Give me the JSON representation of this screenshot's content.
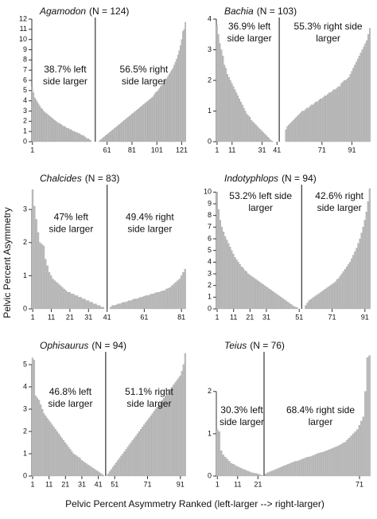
{
  "y_label": "Pelvic Percent Asymmetry",
  "x_label": "Pelvic Percent Asymmetry Ranked (left-larger --> right-larger)",
  "chart_data": [
    {
      "type": "bar",
      "genus": "Agamodon",
      "n_label": "(N = 124)",
      "color": "#bdbdbd",
      "annotations": [
        [
          "38.7% left",
          "side larger"
        ],
        [
          "56.5% right",
          "side larger"
        ]
      ],
      "xlim": [
        0.5,
        124.5
      ],
      "xticks": [
        1,
        61,
        81,
        101,
        121
      ],
      "ylim": [
        0,
        12
      ],
      "yticks": [
        0,
        1,
        2,
        3,
        4,
        5,
        6,
        7,
        8,
        9,
        10,
        11,
        12
      ],
      "values": [
        5.4,
        4.8,
        4.3,
        4.1,
        3.9,
        3.7,
        3.5,
        3.3,
        3.2,
        3.0,
        2.9,
        2.8,
        2.7,
        2.6,
        2.5,
        2.4,
        2.3,
        2.2,
        2.1,
        2.0,
        1.9,
        1.8,
        1.8,
        1.7,
        1.6,
        1.5,
        1.5,
        1.4,
        1.3,
        1.3,
        1.2,
        1.2,
        1.1,
        1.0,
        1.0,
        0.9,
        0.9,
        0.8,
        0.8,
        0.7,
        0.6,
        0.6,
        0.5,
        0.4,
        0.3,
        0.3,
        0.2,
        0.1,
        0,
        0,
        0,
        0,
        0,
        0,
        0.1,
        0.2,
        0.3,
        0.4,
        0.5,
        0.6,
        0.7,
        0.8,
        0.9,
        1.0,
        1.1,
        1.2,
        1.3,
        1.4,
        1.5,
        1.6,
        1.7,
        1.8,
        1.9,
        2.0,
        2.1,
        2.2,
        2.3,
        2.4,
        2.5,
        2.6,
        2.7,
        2.8,
        2.9,
        3.0,
        3.1,
        3.2,
        3.3,
        3.4,
        3.5,
        3.6,
        3.7,
        3.8,
        3.9,
        4.0,
        4.1,
        4.2,
        4.3,
        4.4,
        4.6,
        4.8,
        4.9,
        5.0,
        5.2,
        5.4,
        5.5,
        5.7,
        5.9,
        6.0,
        6.2,
        6.4,
        6.6,
        6.8,
        7.0,
        7.2,
        7.5,
        7.8,
        8.1,
        8.5,
        8.9,
        9.4,
        10.0,
        10.8,
        11.0,
        11.7
      ]
    },
    {
      "type": "bar",
      "genus": "Bachia",
      "n_label": "(N = 103)",
      "color": "#bdbdbd",
      "annotations": [
        [
          "36.9% left",
          "side larger"
        ],
        [
          "55.3% right side",
          "larger"
        ]
      ],
      "xlim": [
        0.5,
        103.5
      ],
      "xticks": [
        1,
        11,
        31,
        41,
        71,
        91
      ],
      "ylim": [
        0,
        4
      ],
      "yticks": [
        0,
        1,
        2,
        3,
        4
      ],
      "values": [
        3.8,
        3.5,
        3.2,
        3.0,
        2.8,
        2.5,
        2.4,
        2.2,
        2.1,
        2.0,
        1.9,
        1.8,
        1.7,
        1.6,
        1.5,
        1.4,
        1.3,
        1.2,
        1.1,
        1.0,
        0.9,
        0.85,
        0.8,
        0.7,
        0.65,
        0.6,
        0.55,
        0.5,
        0.45,
        0.4,
        0.35,
        0.3,
        0.25,
        0.2,
        0.15,
        0.1,
        0.05,
        0.02,
        0,
        0,
        0,
        0,
        0,
        0,
        0,
        0,
        0.4,
        0.5,
        0.55,
        0.6,
        0.65,
        0.7,
        0.75,
        0.8,
        0.85,
        0.9,
        0.95,
        1.0,
        1.0,
        1.05,
        1.1,
        1.1,
        1.15,
        1.2,
        1.2,
        1.25,
        1.3,
        1.3,
        1.35,
        1.4,
        1.4,
        1.45,
        1.5,
        1.5,
        1.55,
        1.6,
        1.6,
        1.65,
        1.7,
        1.7,
        1.75,
        1.8,
        1.8,
        1.9,
        1.95,
        2.0,
        2.0,
        2.05,
        2.1,
        2.2,
        2.3,
        2.4,
        2.5,
        2.6,
        2.7,
        2.8,
        2.9,
        3.0,
        3.1,
        3.2,
        3.3,
        3.5,
        3.7
      ]
    },
    {
      "type": "bar",
      "genus": "Chalcides",
      "n_label": "(N = 83)",
      "color": "#bdbdbd",
      "annotations": [
        [
          "47% left",
          "side larger"
        ],
        [
          "49.4% right",
          "side larger"
        ]
      ],
      "xlim": [
        0.5,
        83.5
      ],
      "xticks": [
        1,
        11,
        21,
        31,
        41,
        61,
        81
      ],
      "ylim": [
        0,
        3.7
      ],
      "yticks": [
        0,
        1,
        2,
        3
      ],
      "values": [
        3.6,
        3.1,
        2.7,
        2.3,
        2.0,
        1.95,
        1.9,
        1.5,
        1.3,
        1.1,
        1.0,
        0.9,
        0.85,
        0.8,
        0.75,
        0.7,
        0.65,
        0.6,
        0.55,
        0.5,
        0.5,
        0.45,
        0.45,
        0.4,
        0.4,
        0.35,
        0.35,
        0.3,
        0.3,
        0.25,
        0.25,
        0.2,
        0.2,
        0.15,
        0.15,
        0.1,
        0.1,
        0.05,
        0.05,
        0,
        0,
        0,
        0.05,
        0.1,
        0.1,
        0.12,
        0.15,
        0.15,
        0.18,
        0.2,
        0.2,
        0.22,
        0.25,
        0.25,
        0.28,
        0.3,
        0.3,
        0.32,
        0.35,
        0.35,
        0.38,
        0.4,
        0.4,
        0.42,
        0.45,
        0.45,
        0.48,
        0.5,
        0.5,
        0.52,
        0.55,
        0.55,
        0.6,
        0.62,
        0.65,
        0.7,
        0.75,
        0.8,
        0.85,
        0.9,
        1.0,
        1.1,
        1.2
      ]
    },
    {
      "type": "bar",
      "genus": "Indotyphlops",
      "n_label": "(N = 94)",
      "color": "#bdbdbd",
      "annotations": [
        [
          "53.2% left side",
          "larger"
        ],
        [
          "42.6% right",
          "side larger"
        ]
      ],
      "xlim": [
        0.5,
        94.5
      ],
      "xticks": [
        1,
        11,
        21,
        31,
        51,
        71,
        91
      ],
      "ylim": [
        0,
        10.5
      ],
      "yticks": [
        0,
        1,
        2,
        3,
        4,
        5,
        6,
        7,
        8,
        9,
        10
      ],
      "values": [
        10,
        8.5,
        7.6,
        7.0,
        6.6,
        6.2,
        5.9,
        5.6,
        5.3,
        5.0,
        4.7,
        4.4,
        4.2,
        4.0,
        3.8,
        3.6,
        3.5,
        3.3,
        3.2,
        3.0,
        2.9,
        2.8,
        2.7,
        2.6,
        2.5,
        2.4,
        2.3,
        2.2,
        2.1,
        2.0,
        1.9,
        1.8,
        1.7,
        1.6,
        1.5,
        1.4,
        1.3,
        1.2,
        1.1,
        1.0,
        0.9,
        0.8,
        0.7,
        0.6,
        0.5,
        0.4,
        0.3,
        0.2,
        0.15,
        0.1,
        0,
        0,
        0,
        0,
        0.3,
        0.5,
        0.7,
        0.8,
        0.9,
        1.0,
        1.1,
        1.2,
        1.3,
        1.4,
        1.5,
        1.6,
        1.7,
        1.8,
        1.9,
        2.0,
        2.1,
        2.2,
        2.3,
        2.5,
        2.6,
        2.8,
        3.0,
        3.2,
        3.4,
        3.6,
        3.8,
        4.0,
        4.3,
        4.6,
        4.9,
        5.2,
        5.6,
        6.0,
        6.5,
        7.0,
        7.6,
        8.3,
        9.2,
        10.3
      ]
    },
    {
      "type": "bar",
      "genus": "Ophisaurus",
      "n_label": "(N = 94)",
      "color": "#bdbdbd",
      "annotations": [
        [
          "46.8% left",
          "side larger"
        ],
        [
          "51.1% right",
          "side larger"
        ]
      ],
      "xlim": [
        0.5,
        94.5
      ],
      "xticks": [
        1,
        11,
        21,
        31,
        41,
        51,
        71,
        91
      ],
      "ylim": [
        0,
        5.5
      ],
      "yticks": [
        0,
        1,
        2,
        3,
        4,
        5
      ],
      "values": [
        5.3,
        5.2,
        3.6,
        3.5,
        3.4,
        3.2,
        3.0,
        2.8,
        2.7,
        2.6,
        2.5,
        2.4,
        2.3,
        2.2,
        2.1,
        2.0,
        1.9,
        1.8,
        1.7,
        1.6,
        1.5,
        1.4,
        1.3,
        1.2,
        1.1,
        1.0,
        0.95,
        0.9,
        0.85,
        0.8,
        0.7,
        0.65,
        0.6,
        0.55,
        0.5,
        0.45,
        0.4,
        0.35,
        0.3,
        0.25,
        0.2,
        0.15,
        0.1,
        0.05,
        0,
        0,
        0.1,
        0.2,
        0.3,
        0.4,
        0.5,
        0.6,
        0.7,
        0.8,
        0.9,
        1.0,
        1.1,
        1.2,
        1.3,
        1.4,
        1.5,
        1.6,
        1.7,
        1.8,
        1.9,
        2.0,
        2.1,
        2.2,
        2.3,
        2.4,
        2.5,
        2.6,
        2.7,
        2.8,
        2.9,
        3.0,
        3.1,
        3.2,
        3.3,
        3.4,
        3.5,
        3.6,
        3.7,
        3.8,
        3.9,
        4.0,
        4.1,
        4.2,
        4.3,
        4.4,
        4.5,
        4.7,
        5.0,
        5.5
      ]
    },
    {
      "type": "bar",
      "genus": "Teius",
      "n_label": "(N = 76)",
      "color": "#bdbdbd",
      "annotations": [
        [
          "30.3% left",
          "side larger"
        ],
        [
          "68.4% right side",
          "larger"
        ]
      ],
      "xlim": [
        0.5,
        76.5
      ],
      "xticks": [
        1,
        11,
        21,
        71
      ],
      "ylim": [
        0,
        2.9
      ],
      "yticks": [
        0,
        1,
        2
      ],
      "values": [
        1.1,
        1.05,
        0.6,
        0.5,
        0.45,
        0.4,
        0.35,
        0.3,
        0.28,
        0.25,
        0.22,
        0.2,
        0.18,
        0.16,
        0.14,
        0.12,
        0.1,
        0.08,
        0.07,
        0.06,
        0.05,
        0.03,
        0.02,
        0,
        0.05,
        0.08,
        0.1,
        0.12,
        0.14,
        0.16,
        0.18,
        0.2,
        0.22,
        0.24,
        0.26,
        0.28,
        0.3,
        0.32,
        0.34,
        0.35,
        0.36,
        0.38,
        0.4,
        0.42,
        0.44,
        0.45,
        0.46,
        0.48,
        0.5,
        0.52,
        0.54,
        0.55,
        0.56,
        0.58,
        0.6,
        0.62,
        0.64,
        0.66,
        0.68,
        0.7,
        0.72,
        0.75,
        0.78,
        0.8,
        0.85,
        0.9,
        0.95,
        1.0,
        1.05,
        1.1,
        1.2,
        1.3,
        1.4,
        2.0,
        2.8,
        2.85
      ]
    }
  ]
}
